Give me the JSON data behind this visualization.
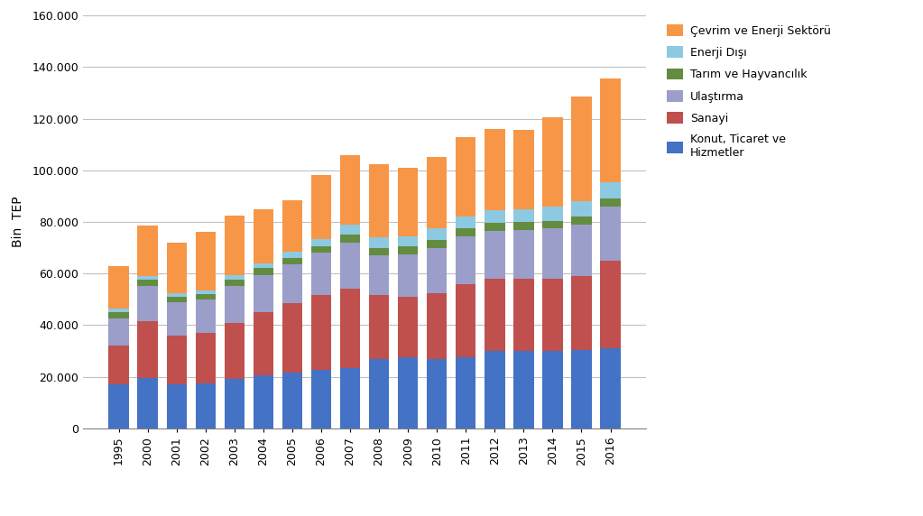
{
  "years": [
    "1995",
    "2000",
    "2001",
    "2002",
    "2003",
    "2004",
    "2005",
    "2006",
    "2007",
    "2008",
    "2009",
    "2010",
    "2011",
    "2012",
    "2013",
    "2014",
    "2015",
    "2016"
  ],
  "konut": [
    17000,
    19500,
    17000,
    17500,
    19000,
    20500,
    21500,
    22500,
    23500,
    27000,
    27500,
    27000,
    27500,
    30000,
    30000,
    30000,
    30500,
    31000
  ],
  "sanayi": [
    15000,
    22000,
    19000,
    19500,
    22000,
    24500,
    27000,
    29000,
    30500,
    24500,
    23500,
    25500,
    28500,
    28000,
    28000,
    28000,
    28500,
    34000
  ],
  "ulastirma": [
    10500,
    13500,
    13000,
    13000,
    14000,
    14500,
    15000,
    16500,
    18000,
    15500,
    16500,
    17500,
    18500,
    18500,
    19000,
    19500,
    20000,
    21000
  ],
  "tarim": [
    2500,
    2500,
    2000,
    2000,
    2500,
    2500,
    2500,
    2500,
    3000,
    3000,
    3000,
    3000,
    3000,
    3000,
    3000,
    3000,
    3000,
    3000
  ],
  "enerji_disi": [
    1500,
    1500,
    1500,
    1500,
    2000,
    2000,
    2500,
    3000,
    4000,
    4000,
    4000,
    4500,
    4500,
    5000,
    5000,
    5500,
    6000,
    6500
  ],
  "cevrim": [
    16500,
    19500,
    19500,
    22500,
    23000,
    21000,
    20000,
    24500,
    27000,
    28500,
    26500,
    27500,
    31000,
    31500,
    30500,
    34500,
    40500,
    40000
  ],
  "colors": {
    "konut": "#4472C4",
    "sanayi": "#C0504D",
    "ulastirma": "#9B9EC9",
    "tarim": "#638C41",
    "enerji_disi": "#8DC9E0",
    "cevrim": "#F79646"
  },
  "labels": {
    "konut": "Konut, Ticaret ve\nHizmetler",
    "sanayi": "Sanayi",
    "ulastirma": "Ulaştırma",
    "tarim": "Tarım ve Hayvancılık",
    "enerji_disi": "Enerji Dışı",
    "cevrim": "Çevrim ve Enerji Sektörü"
  },
  "ylabel": "Bin  TEP",
  "ylim": [
    0,
    160000
  ],
  "yticks": [
    0,
    20000,
    40000,
    60000,
    80000,
    100000,
    120000,
    140000,
    160000
  ],
  "ytick_labels": [
    "0",
    "20.000",
    "40.000",
    "60.000",
    "80.000",
    "100.000",
    "120.000",
    "140.000",
    "160.000"
  ],
  "background_color": "#FFFFFF",
  "grid_color": "#C0C0C0",
  "bar_width": 0.7,
  "figsize": [
    10.23,
    5.72
  ],
  "dpi": 100
}
